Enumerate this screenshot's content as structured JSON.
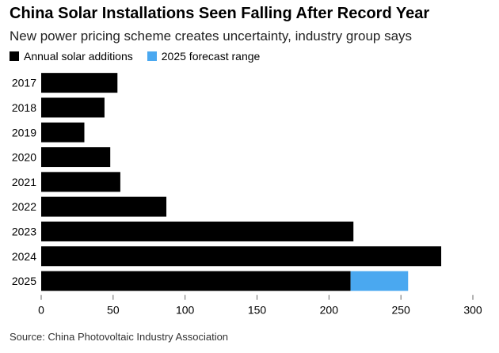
{
  "header": {
    "title": "China Solar Installations Seen Falling After Record Year",
    "subtitle": "New power pricing scheme creates uncertainty, industry group says"
  },
  "legend": {
    "items": [
      {
        "label": "Annual solar additions",
        "color": "#000000"
      },
      {
        "label": "2025 forecast range",
        "color": "#4aa8f0"
      }
    ]
  },
  "footer": {
    "source": "Source: China Photovoltaic Industry Association"
  },
  "chart_data": {
    "type": "bar",
    "orientation": "horizontal",
    "stacked": true,
    "categories": [
      "2017",
      "2018",
      "2019",
      "2020",
      "2021",
      "2022",
      "2023",
      "2024",
      "2025"
    ],
    "series": [
      {
        "name": "Annual solar additions",
        "color": "#000000",
        "values": [
          53,
          44,
          30,
          48,
          55,
          87,
          217,
          278,
          215
        ]
      },
      {
        "name": "2025 forecast range",
        "color": "#4aa8f0",
        "values": [
          0,
          0,
          0,
          0,
          0,
          0,
          0,
          0,
          40
        ]
      }
    ],
    "xlim": [
      0,
      300
    ],
    "xticks": [
      0,
      50,
      100,
      150,
      200,
      250,
      300
    ],
    "grid": false,
    "legend_position": "top-left"
  }
}
